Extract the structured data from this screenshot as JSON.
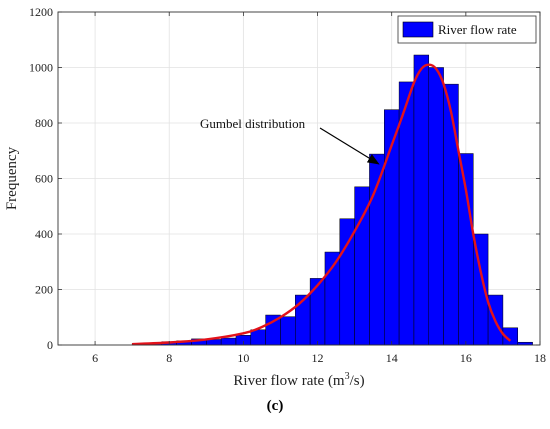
{
  "chart_data": {
    "type": "bar",
    "subtype": "histogram-with-fit",
    "title": "",
    "xlabel": "River flow rate (m",
    "xlabel_sup": "3",
    "xlabel_tail": "/s)",
    "ylabel": "Frequency",
    "xlim": [
      5,
      18
    ],
    "ylim": [
      0,
      1200
    ],
    "xticks": [
      6,
      8,
      10,
      12,
      14,
      16,
      18
    ],
    "yticks": [
      0,
      200,
      400,
      600,
      800,
      1000,
      1200
    ],
    "grid": true,
    "legend_position": "top-right",
    "bin_width": 0.4,
    "bins": [
      {
        "x0": 7.0,
        "x1": 7.4,
        "value": 5
      },
      {
        "x0": 7.4,
        "x1": 7.8,
        "value": 8
      },
      {
        "x0": 7.8,
        "x1": 8.2,
        "value": 12
      },
      {
        "x0": 8.2,
        "x1": 8.6,
        "value": 15
      },
      {
        "x0": 8.6,
        "x1": 9.0,
        "value": 22
      },
      {
        "x0": 9.0,
        "x1": 9.4,
        "value": 20
      },
      {
        "x0": 9.4,
        "x1": 9.8,
        "value": 25
      },
      {
        "x0": 9.8,
        "x1": 10.2,
        "value": 35
      },
      {
        "x0": 10.2,
        "x1": 10.6,
        "value": 55
      },
      {
        "x0": 10.6,
        "x1": 11.0,
        "value": 108
      },
      {
        "x0": 11.0,
        "x1": 11.4,
        "value": 102
      },
      {
        "x0": 11.4,
        "x1": 11.8,
        "value": 180
      },
      {
        "x0": 11.8,
        "x1": 12.2,
        "value": 240
      },
      {
        "x0": 12.2,
        "x1": 12.6,
        "value": 335
      },
      {
        "x0": 12.6,
        "x1": 13.0,
        "value": 455
      },
      {
        "x0": 13.0,
        "x1": 13.4,
        "value": 570
      },
      {
        "x0": 13.4,
        "x1": 13.8,
        "value": 688
      },
      {
        "x0": 13.8,
        "x1": 14.2,
        "value": 848
      },
      {
        "x0": 14.2,
        "x1": 14.6,
        "value": 948
      },
      {
        "x0": 14.6,
        "x1": 15.0,
        "value": 1045
      },
      {
        "x0": 15.0,
        "x1": 15.4,
        "value": 1000
      },
      {
        "x0": 15.4,
        "x1": 15.8,
        "value": 940
      },
      {
        "x0": 15.8,
        "x1": 16.2,
        "value": 690
      },
      {
        "x0": 16.2,
        "x1": 16.6,
        "value": 400
      },
      {
        "x0": 16.6,
        "x1": 17.0,
        "value": 180
      },
      {
        "x0": 17.0,
        "x1": 17.4,
        "value": 62
      },
      {
        "x0": 17.4,
        "x1": 17.8,
        "value": 10
      }
    ],
    "series": [
      {
        "name": "River flow rate",
        "kind": "histogram",
        "color": "#0000ff"
      }
    ],
    "fit_curve": {
      "label": "Gumbel distribution",
      "color": "#e3121b",
      "x": [
        7.0,
        8.0,
        9.0,
        10.0,
        10.5,
        11.0,
        11.5,
        12.0,
        12.5,
        13.0,
        13.5,
        14.0,
        14.3,
        14.6,
        14.8,
        15.0,
        15.2,
        15.4,
        15.6,
        15.8,
        16.0,
        16.2,
        16.4,
        16.6,
        16.8,
        17.0,
        17.2
      ],
      "y": [
        3,
        9,
        20,
        42,
        65,
        100,
        148,
        215,
        300,
        410,
        540,
        720,
        830,
        945,
        995,
        1010,
        995,
        940,
        840,
        700,
        560,
        400,
        265,
        155,
        85,
        40,
        15
      ]
    },
    "annotation": {
      "text": "Gumbel distribution",
      "arrow_to": [
        13.7,
        660
      ]
    }
  },
  "panel_label": "(c)"
}
